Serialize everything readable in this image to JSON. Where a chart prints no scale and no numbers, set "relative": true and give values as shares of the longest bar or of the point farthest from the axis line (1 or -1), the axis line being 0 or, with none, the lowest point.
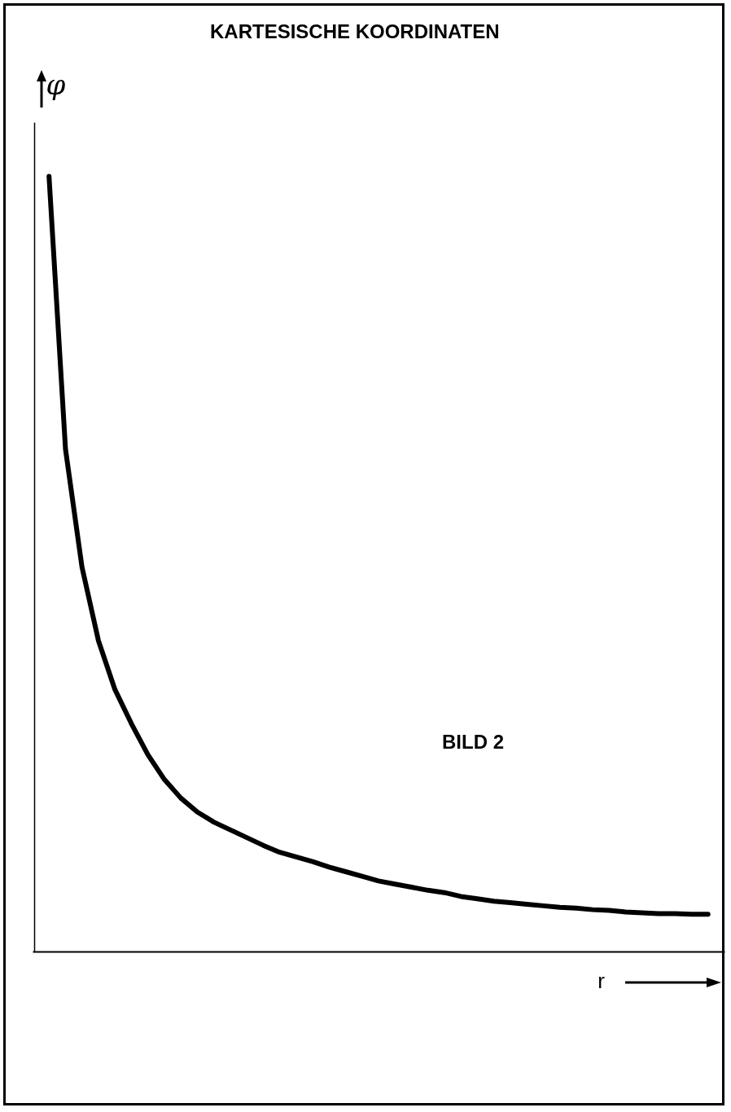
{
  "chart_data": {
    "type": "line",
    "title": "KARTESISCHE KOORDINATEN",
    "xlabel": "r",
    "ylabel": "φ",
    "relative": true,
    "annotations": [
      "BILD 2"
    ],
    "grid": false,
    "legend": false,
    "categories": [
      null,
      null,
      null,
      null,
      null,
      null,
      null,
      null,
      null,
      null,
      null,
      null,
      null,
      null,
      null,
      null,
      null,
      null,
      null,
      null,
      null,
      null,
      null,
      null,
      null,
      null,
      null,
      null,
      null,
      null,
      null,
      null,
      null,
      null,
      null,
      null,
      null,
      null,
      null,
      null,
      null
    ],
    "series": [
      {
        "color": "#000000",
        "values": [
          1,
          0.648,
          0.496,
          0.401,
          0.338,
          0.294,
          0.254,
          0.222,
          0.198,
          0.18,
          0.167,
          0.157,
          0.147,
          0.137,
          0.128,
          0.122,
          0.116,
          0.109,
          0.103,
          0.097,
          0.091,
          0.087,
          0.083,
          0.079,
          0.076,
          0.071,
          0.068,
          0.065,
          0.063,
          0.061,
          0.059,
          0.057,
          0.056,
          0.054,
          0.053,
          0.051,
          0.05,
          0.049,
          0.049,
          0.048,
          0.048
        ]
      }
    ]
  }
}
